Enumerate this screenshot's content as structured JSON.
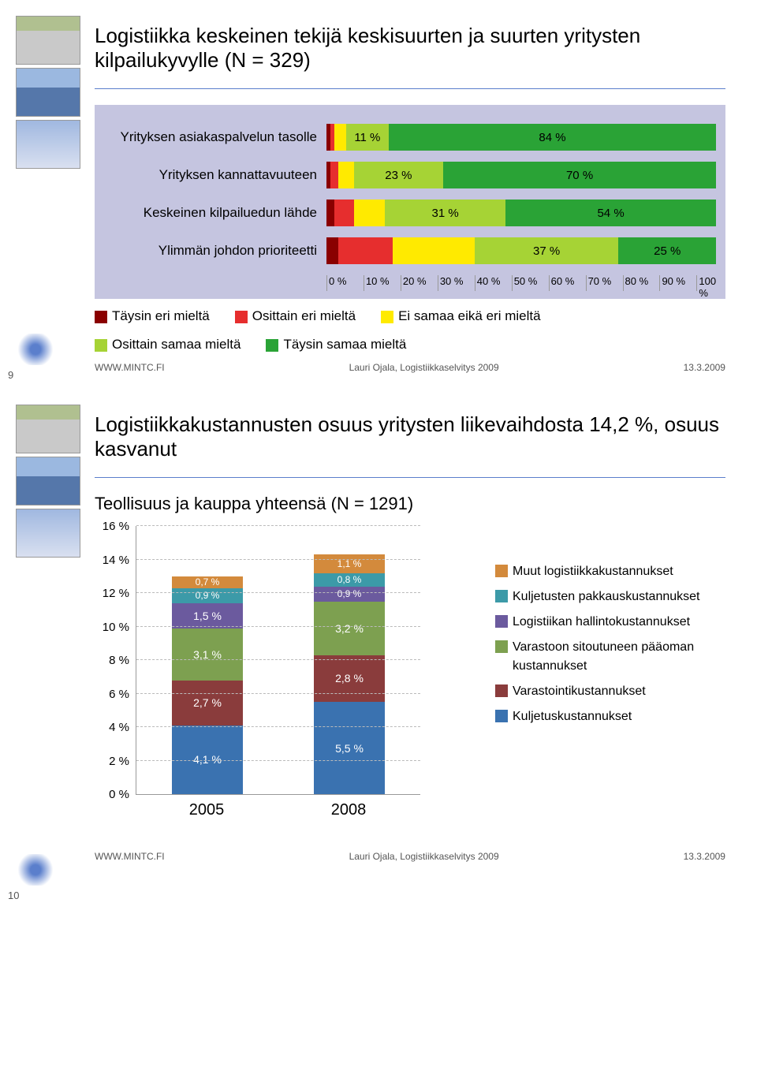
{
  "slide1": {
    "title": "Logistiikka keskeinen tekijä keskisuurten ja suurten yritysten kilpailukyvylle (N = 329)",
    "chart": {
      "type": "stacked-bar-horizontal",
      "background_color": "#c5c5e0",
      "categories": [
        {
          "label": "Yrityksen asiakaspalvelun tasolle",
          "segments": [
            {
              "value": 1,
              "label": "",
              "color": "#8a0000"
            },
            {
              "value": 1,
              "label": "",
              "color": "#e62e2e"
            },
            {
              "value": 3,
              "label": "",
              "color": "#ffea00"
            },
            {
              "value": 11,
              "label": "11 %",
              "color": "#a6d335"
            },
            {
              "value": 84,
              "label": "84 %",
              "color": "#2aa336"
            }
          ]
        },
        {
          "label": "Yrityksen kannattavuuteen",
          "segments": [
            {
              "value": 1,
              "label": "",
              "color": "#8a0000"
            },
            {
              "value": 2,
              "label": "",
              "color": "#e62e2e"
            },
            {
              "value": 4,
              "label": "",
              "color": "#ffea00"
            },
            {
              "value": 23,
              "label": "23 %",
              "color": "#a6d335"
            },
            {
              "value": 70,
              "label": "70 %",
              "color": "#2aa336"
            }
          ]
        },
        {
          "label": "Keskeinen kilpailuedun lähde",
          "segments": [
            {
              "value": 2,
              "label": "",
              "color": "#8a0000"
            },
            {
              "value": 5,
              "label": "",
              "color": "#e62e2e"
            },
            {
              "value": 8,
              "label": "",
              "color": "#ffea00"
            },
            {
              "value": 31,
              "label": "31 %",
              "color": "#a6d335"
            },
            {
              "value": 54,
              "label": "54 %",
              "color": "#2aa336"
            }
          ]
        },
        {
          "label": "Ylimmän johdon prioriteetti",
          "segments": [
            {
              "value": 3,
              "label": "",
              "color": "#8a0000"
            },
            {
              "value": 14,
              "label": "",
              "color": "#e62e2e"
            },
            {
              "value": 21,
              "label": "",
              "color": "#ffea00"
            },
            {
              "value": 37,
              "label": "37 %",
              "color": "#a6d335"
            },
            {
              "value": 25,
              "label": "25 %",
              "color": "#2aa336"
            }
          ]
        }
      ],
      "x_ticks": [
        "0 %",
        "10 %",
        "20 %",
        "30 %",
        "40 %",
        "50 %",
        "60 %",
        "70 %",
        "80 %",
        "90 %",
        "100 %"
      ],
      "legend": [
        {
          "color": "#8a0000",
          "label": "Täysin eri mieltä"
        },
        {
          "color": "#e62e2e",
          "label": "Osittain eri mieltä"
        },
        {
          "color": "#ffea00",
          "label": "Ei samaa eikä eri mieltä"
        },
        {
          "color": "#a6d335",
          "label": "Osittain samaa mieltä"
        },
        {
          "color": "#2aa336",
          "label": "Täysin samaa mieltä"
        }
      ]
    },
    "footer_left": "WWW.MINTC.FI",
    "footer_center": "Lauri Ojala, Logistiikkaselvitys 2009",
    "footer_right": "13.3.2009",
    "page_number": "9"
  },
  "slide2": {
    "title": "Logistiikkakustannusten osuus yritysten liikevaihdosta 14,2 %, osuus kasvanut",
    "subtitle": "Teollisuus ja kauppa yhteensä (N = 1291)",
    "chart": {
      "type": "stacked-column",
      "y_max": 16,
      "y_ticks": [
        "0 %",
        "2 %",
        "4 %",
        "6 %",
        "8 %",
        "10 %",
        "12 %",
        "14 %",
        "16 %"
      ],
      "columns": [
        {
          "x": "2005",
          "segments": [
            {
              "value": 4.1,
              "label": "4,1 %",
              "color": "#3a72b0"
            },
            {
              "value": 2.7,
              "label": "2,7 %",
              "color": "#8a3c3c"
            },
            {
              "value": 3.1,
              "label": "3,1 %",
              "color": "#7da050"
            },
            {
              "value": 1.5,
              "label": "1,5 %",
              "color": "#6b5a9e"
            },
            {
              "value": 0.9,
              "label": "0,9 %",
              "color": "#3c9aa8"
            },
            {
              "value": 0.7,
              "label": "0,7 %",
              "color": "#d38a3c"
            }
          ]
        },
        {
          "x": "2008",
          "segments": [
            {
              "value": 5.5,
              "label": "5,5 %",
              "color": "#3a72b0"
            },
            {
              "value": 2.8,
              "label": "2,8 %",
              "color": "#8a3c3c"
            },
            {
              "value": 3.2,
              "label": "3,2 %",
              "color": "#7da050"
            },
            {
              "value": 0.9,
              "label": "0,9 %",
              "color": "#6b5a9e"
            },
            {
              "value": 0.8,
              "label": "0,8 %",
              "color": "#3c9aa8"
            },
            {
              "value": 1.1,
              "label": "1,1 %",
              "color": "#d38a3c"
            }
          ]
        }
      ],
      "legend": [
        {
          "color": "#d38a3c",
          "label": "Muut logistiikkakustannukset"
        },
        {
          "color": "#3c9aa8",
          "label": "Kuljetusten pakkauskustannukset"
        },
        {
          "color": "#6b5a9e",
          "label": "Logistiikan hallintokustannukset"
        },
        {
          "color": "#7da050",
          "label": "Varastoon sitoutuneen pääoman kustannukset"
        },
        {
          "color": "#8a3c3c",
          "label": "Varastointikustannukset"
        },
        {
          "color": "#3a72b0",
          "label": "Kuljetuskustannukset"
        }
      ]
    },
    "footer_left": "WWW.MINTC.FI",
    "footer_center": "Lauri Ojala, Logistiikkaselvitys 2009",
    "footer_right": "13.3.2009",
    "page_number": "10"
  }
}
